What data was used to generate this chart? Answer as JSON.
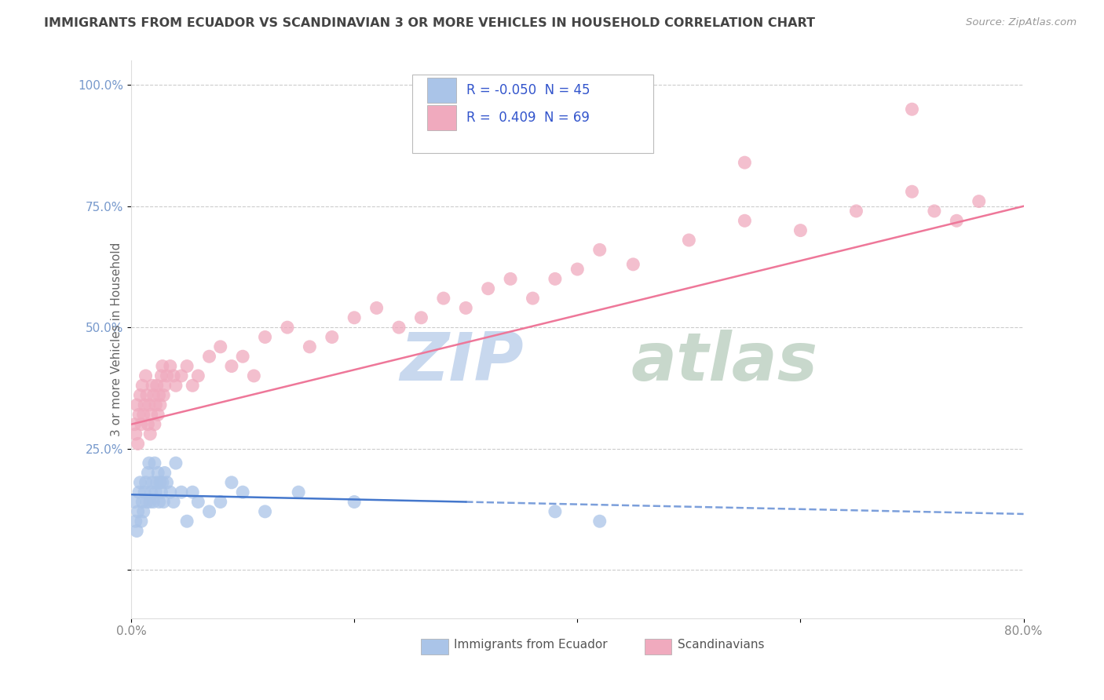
{
  "title": "IMMIGRANTS FROM ECUADOR VS SCANDINAVIAN 3 OR MORE VEHICLES IN HOUSEHOLD CORRELATION CHART",
  "source": "Source: ZipAtlas.com",
  "xlabel_ticks": [
    "0.0%",
    "",
    "",
    "",
    "80.0%"
  ],
  "xlabel_vals": [
    0.0,
    20.0,
    40.0,
    60.0,
    80.0
  ],
  "ylabel_ticks": [
    "100.0%",
    "75.0%",
    "50.0%",
    "25.0%",
    ""
  ],
  "ylabel_vals": [
    100.0,
    75.0,
    50.0,
    25.0,
    0.0
  ],
  "xmin": 0.0,
  "xmax": 80.0,
  "ymin": -10.0,
  "ymax": 105.0,
  "blue_R": -0.05,
  "blue_N": 45,
  "pink_R": 0.409,
  "pink_N": 69,
  "blue_color": "#aac4e8",
  "pink_color": "#f0aabe",
  "blue_line_color": "#4477cc",
  "pink_line_color": "#ee7799",
  "watermark1": "ZIP",
  "watermark2": "atlas",
  "watermark_color1": "#c8d8ee",
  "watermark_color2": "#c8d8cc",
  "legend_text_color": "#3355cc",
  "tick_color": "#7799cc",
  "blue_x": [
    0.3,
    0.4,
    0.5,
    0.6,
    0.7,
    0.8,
    0.9,
    1.0,
    1.1,
    1.2,
    1.3,
    1.4,
    1.5,
    1.6,
    1.7,
    1.8,
    1.9,
    2.0,
    2.1,
    2.2,
    2.3,
    2.4,
    2.5,
    2.6,
    2.7,
    2.8,
    2.9,
    3.0,
    3.2,
    3.5,
    3.8,
    4.0,
    4.5,
    5.0,
    5.5,
    6.0,
    7.0,
    8.0,
    9.0,
    10.0,
    12.0,
    15.0,
    20.0,
    38.0,
    42.0
  ],
  "blue_y": [
    14,
    10,
    8,
    12,
    16,
    18,
    10,
    14,
    12,
    16,
    18,
    14,
    20,
    22,
    14,
    16,
    18,
    14,
    22,
    16,
    18,
    20,
    14,
    18,
    16,
    18,
    14,
    20,
    18,
    16,
    14,
    22,
    16,
    10,
    16,
    14,
    12,
    14,
    18,
    16,
    12,
    16,
    14,
    12,
    10
  ],
  "pink_x": [
    0.3,
    0.4,
    0.5,
    0.6,
    0.7,
    0.8,
    0.9,
    1.0,
    1.1,
    1.2,
    1.3,
    1.4,
    1.5,
    1.6,
    1.7,
    1.8,
    1.9,
    2.0,
    2.1,
    2.2,
    2.3,
    2.4,
    2.5,
    2.6,
    2.7,
    2.8,
    2.9,
    3.0,
    3.2,
    3.5,
    3.8,
    4.0,
    4.5,
    5.0,
    5.5,
    6.0,
    7.0,
    8.0,
    9.0,
    10.0,
    11.0,
    12.0,
    14.0,
    16.0,
    18.0,
    20.0,
    22.0,
    24.0,
    26.0,
    28.0,
    30.0,
    32.0,
    34.0,
    36.0,
    38.0,
    40.0,
    42.0,
    45.0,
    50.0,
    55.0,
    60.0,
    65.0,
    70.0,
    72.0,
    74.0,
    76.0,
    40.0,
    55.0,
    70.0
  ],
  "pink_y": [
    30,
    28,
    34,
    26,
    32,
    36,
    30,
    38,
    32,
    34,
    40,
    36,
    30,
    34,
    28,
    32,
    38,
    36,
    30,
    34,
    38,
    32,
    36,
    34,
    40,
    42,
    36,
    38,
    40,
    42,
    40,
    38,
    40,
    42,
    38,
    40,
    44,
    46,
    42,
    44,
    40,
    48,
    50,
    46,
    48,
    52,
    54,
    50,
    52,
    56,
    54,
    58,
    60,
    56,
    60,
    62,
    66,
    63,
    68,
    72,
    70,
    74,
    78,
    74,
    72,
    76,
    90,
    84,
    95
  ],
  "blue_line_x0": 0.0,
  "blue_line_y0": 15.5,
  "blue_line_x1": 80.0,
  "blue_line_y1": 11.5,
  "pink_line_x0": 0.0,
  "pink_line_y0": 30.0,
  "pink_line_x1": 80.0,
  "pink_line_y1": 75.0,
  "blue_solid_end": 30.0
}
